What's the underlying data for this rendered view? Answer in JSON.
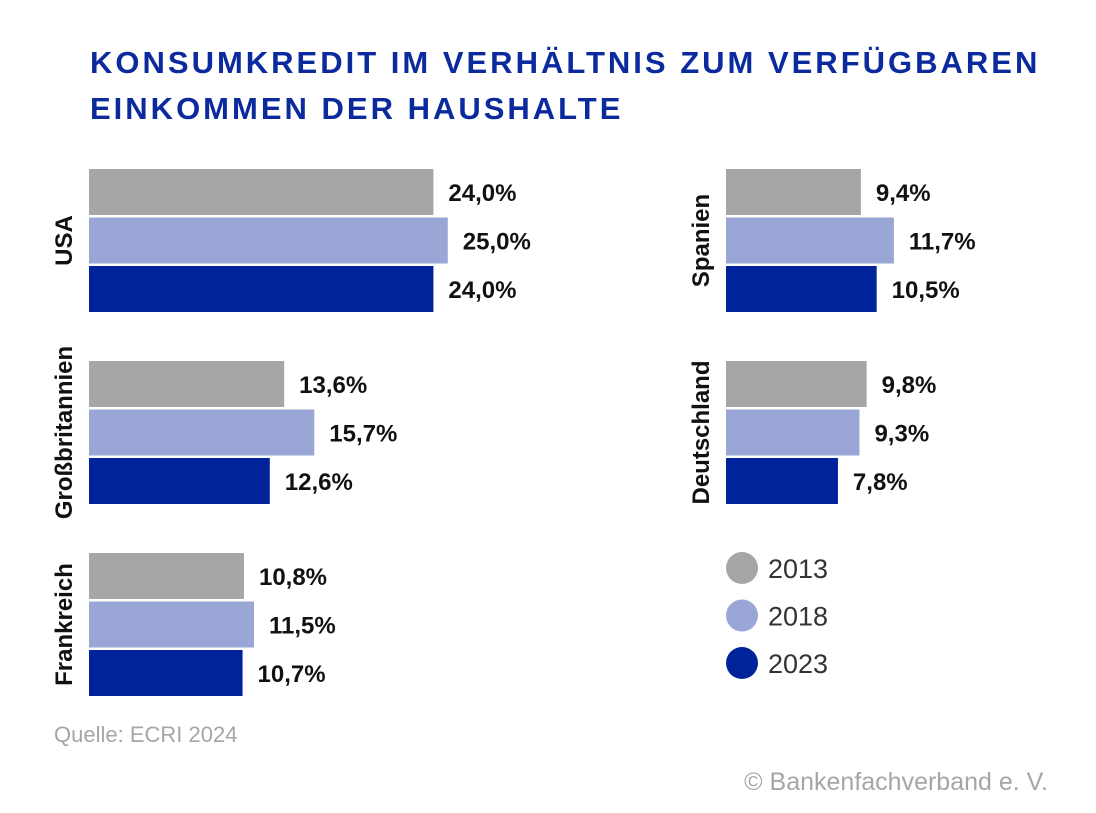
{
  "title_lines": [
    "KONSUMKREDIT IM VERHÄLTNIS ZUM VERFÜGBAREN",
    "EINKOMMEN DER HAUSHALTE"
  ],
  "source": "Quelle: ECRI 2024",
  "copyright": "© Bankenfachverband e. V.",
  "colors": {
    "2013": "#a6a6a6",
    "2018": "#9aa6d6",
    "2023": "#00239c"
  },
  "chart_data": {
    "type": "bar",
    "orientation": "horizontal",
    "title": "KONSUMKREDIT IM VERHÄLTNIS ZUM VERFÜGBAREN EINKOMMEN DER HAUSHALTE",
    "unit": "%",
    "series_names": [
      "2013",
      "2018",
      "2023"
    ],
    "groups": [
      {
        "name": "USA",
        "values": [
          24.0,
          25.0,
          24.0
        ],
        "labels": [
          "24,0%",
          "25,0%",
          "24,0%"
        ]
      },
      {
        "name": "Großbritannien",
        "values": [
          13.6,
          15.7,
          12.6
        ],
        "labels": [
          "13,6%",
          "15,7%",
          "12,6%"
        ]
      },
      {
        "name": "Frankreich",
        "values": [
          10.8,
          11.5,
          10.7
        ],
        "labels": [
          "10,8%",
          "11,5%",
          "10,7%"
        ]
      },
      {
        "name": "Spanien",
        "values": [
          9.4,
          11.7,
          10.5
        ],
        "labels": [
          "9,4%",
          "11,7%",
          "10,5%"
        ]
      },
      {
        "name": "Deutschland",
        "values": [
          9.8,
          9.3,
          7.8
        ],
        "labels": [
          "9,8%",
          "9,3%",
          "7,8%"
        ]
      }
    ],
    "legend": [
      "2013",
      "2018",
      "2023"
    ],
    "legend_position": "bottom-right"
  }
}
